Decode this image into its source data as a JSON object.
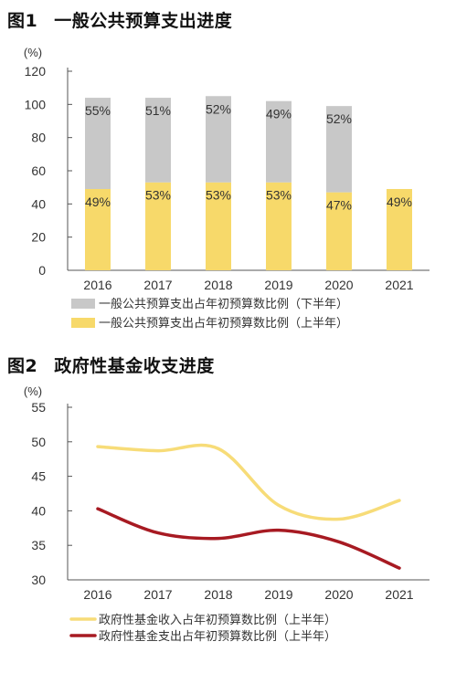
{
  "figures": [
    {
      "number": "图1",
      "title": "一般公共预算支出进度",
      "chart_data": {
        "type": "bar",
        "stacked": true,
        "y_unit": "(%)",
        "ylim": [
          0,
          120
        ],
        "y_ticks": [
          0,
          20,
          40,
          60,
          80,
          100,
          120
        ],
        "categories": [
          "2016",
          "2017",
          "2018",
          "2019",
          "2020",
          "2021"
        ],
        "series": [
          {
            "name": "一般公共预算支出占年初预算数比例（上半年）",
            "color": "#f7d96a",
            "values": [
              49,
              53,
              53,
              53,
              47,
              49
            ],
            "labels": [
              "49%",
              "53%",
              "53%",
              "53%",
              "47%",
              "49%"
            ]
          },
          {
            "name": "一般公共预算支出占年初预算数比例（下半年）",
            "color": "#c8c8c8",
            "values": [
              55,
              51,
              52,
              49,
              52,
              null
            ],
            "labels": [
              "55%",
              "51%",
              "52%",
              "49%",
              "52%",
              ""
            ]
          }
        ],
        "grid": false,
        "legend": "bottom"
      }
    },
    {
      "number": "图2",
      "title": "政府性基金收支进度",
      "chart_data": {
        "type": "line",
        "y_unit": "(%)",
        "ylim": [
          30,
          55
        ],
        "y_ticks": [
          30,
          35,
          40,
          45,
          50,
          55
        ],
        "categories": [
          "2016",
          "2017",
          "2018",
          "2019",
          "2020",
          "2021"
        ],
        "series": [
          {
            "name": "政府性基金收入占年初预算数比例（上半年）",
            "color": "#f7dc78",
            "values": [
              49.3,
              48.7,
              49.0,
              40.8,
              38.8,
              41.5
            ]
          },
          {
            "name": "政府性基金支出占年初预算数比例（上半年）",
            "color": "#a71a22",
            "values": [
              40.3,
              36.8,
              36.0,
              37.2,
              35.5,
              31.7
            ]
          }
        ],
        "grid": false,
        "legend": "bottom"
      }
    }
  ]
}
